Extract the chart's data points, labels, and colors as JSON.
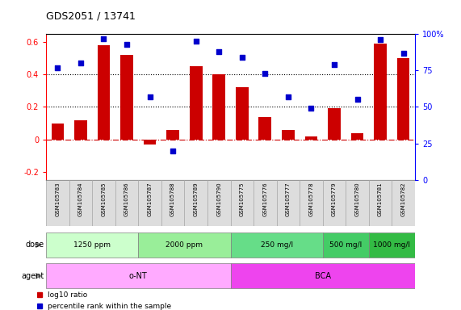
{
  "title": "GDS2051 / 13741",
  "samples": [
    "GSM105783",
    "GSM105784",
    "GSM105785",
    "GSM105786",
    "GSM105787",
    "GSM105788",
    "GSM105789",
    "GSM105790",
    "GSM105775",
    "GSM105776",
    "GSM105777",
    "GSM105778",
    "GSM105779",
    "GSM105780",
    "GSM105781",
    "GSM105782"
  ],
  "log10_ratio": [
    0.1,
    0.12,
    0.58,
    0.52,
    0.04,
    0.06,
    0.45,
    0.4,
    0.32,
    0.14,
    0.06,
    0.02,
    0.19,
    0.04,
    0.59,
    0.5
  ],
  "log10_ratio_neg": [
    0.0,
    0.0,
    0.0,
    0.0,
    -0.07,
    0.0,
    0.0,
    0.0,
    0.0,
    0.0,
    0.0,
    0.0,
    0.0,
    0.0,
    0.0,
    0.0
  ],
  "percentile_rank": [
    77,
    80,
    97,
    93,
    57,
    20,
    95,
    88,
    84,
    73,
    57,
    49,
    79,
    55,
    96,
    87
  ],
  "bar_color": "#cc0000",
  "point_color": "#0000cc",
  "ylim_left": [
    -0.25,
    0.65
  ],
  "ylim_right": [
    0,
    100
  ],
  "yticks_left": [
    -0.2,
    0.0,
    0.2,
    0.4,
    0.6
  ],
  "yticks_right": [
    0,
    25,
    50,
    75,
    100
  ],
  "ytick_labels_left": [
    "-0.2",
    "0",
    "0.2",
    "0.4",
    "0.6"
  ],
  "ytick_labels_right": [
    "0",
    "25",
    "50",
    "75",
    "100%"
  ],
  "hlines": [
    0.2,
    0.4
  ],
  "zero_line_color": "#cc0000",
  "zero_line_style": "-.",
  "hline_style": ":",
  "hline_color": "black",
  "dose_groups": [
    {
      "label": "1250 ppm",
      "start": 0,
      "end": 4,
      "color": "#ccffcc"
    },
    {
      "label": "2000 ppm",
      "start": 4,
      "end": 8,
      "color": "#99ee99"
    },
    {
      "label": "250 mg/l",
      "start": 8,
      "end": 12,
      "color": "#66dd88"
    },
    {
      "label": "500 mg/l",
      "start": 12,
      "end": 14,
      "color": "#44cc66"
    },
    {
      "label": "1000 mg/l",
      "start": 14,
      "end": 16,
      "color": "#33bb44"
    }
  ],
  "agent_groups": [
    {
      "label": "o-NT",
      "start": 0,
      "end": 8,
      "color": "#ffaaff"
    },
    {
      "label": "BCA",
      "start": 8,
      "end": 16,
      "color": "#ee44ee"
    }
  ],
  "dose_label": "dose",
  "agent_label": "agent",
  "legend_items": [
    {
      "color": "#cc0000",
      "label": "log10 ratio"
    },
    {
      "color": "#0000cc",
      "label": "percentile rank within the sample"
    }
  ],
  "bar_width": 0.55,
  "background_color": "#ffffff",
  "label_bg_color": "#dddddd",
  "label_edge_color": "#aaaaaa"
}
